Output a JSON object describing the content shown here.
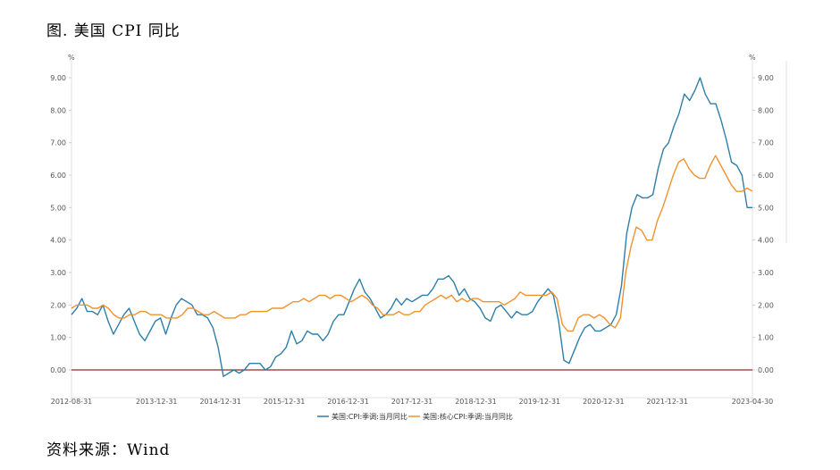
{
  "title": "图. 美国 CPI 同比",
  "source": "资料来源：Wind",
  "chart_data": {
    "type": "line",
    "unit_left": "%",
    "unit_right": "%",
    "ylim": [
      -0.5,
      9.0
    ],
    "yticks": [
      "0.00",
      "1.00",
      "2.00",
      "3.00",
      "4.00",
      "5.00",
      "6.00",
      "7.00",
      "8.00",
      "9.00"
    ],
    "xticks": [
      "2012-08-31",
      "2013-12-31",
      "2014-12-31",
      "2015-12-31",
      "2016-12-31",
      "2017-12-31",
      "2018-12-31",
      "2019-12-31",
      "2020-12-31",
      "2021-12-31",
      "2023-04-30"
    ],
    "x_start": "2012-08",
    "x_end": "2023-04",
    "grid": false,
    "legend_position": "bottom",
    "series": [
      {
        "name": "美国:CPI:季调:当月同比",
        "color": "#2e7fa8",
        "values": [
          1.7,
          1.9,
          2.2,
          1.8,
          1.8,
          1.7,
          2.0,
          1.5,
          1.1,
          1.4,
          1.7,
          1.9,
          1.5,
          1.1,
          0.9,
          1.2,
          1.5,
          1.6,
          1.1,
          1.6,
          2.0,
          2.2,
          2.1,
          2.0,
          1.7,
          1.7,
          1.6,
          1.3,
          0.7,
          -0.2,
          -0.1,
          0.0,
          -0.1,
          0.0,
          0.2,
          0.2,
          0.2,
          0.0,
          0.1,
          0.4,
          0.5,
          0.7,
          1.2,
          0.8,
          0.9,
          1.2,
          1.1,
          1.1,
          0.9,
          1.1,
          1.5,
          1.7,
          1.7,
          2.1,
          2.5,
          2.8,
          2.4,
          2.2,
          1.9,
          1.6,
          1.7,
          1.9,
          2.2,
          2.0,
          2.2,
          2.1,
          2.2,
          2.3,
          2.3,
          2.5,
          2.8,
          2.8,
          2.9,
          2.7,
          2.3,
          2.5,
          2.2,
          2.1,
          1.9,
          1.6,
          1.5,
          1.9,
          2.0,
          1.8,
          1.6,
          1.8,
          1.7,
          1.7,
          1.8,
          2.1,
          2.3,
          2.5,
          2.3,
          1.5,
          0.3,
          0.2,
          0.6,
          1.0,
          1.3,
          1.4,
          1.2,
          1.2,
          1.3,
          1.4,
          1.7,
          2.6,
          4.2,
          5.0,
          5.4,
          5.3,
          5.3,
          5.4,
          6.2,
          6.8,
          7.0,
          7.5,
          7.9,
          8.5,
          8.3,
          8.6,
          9.0,
          8.5,
          8.2,
          8.2,
          7.7,
          7.1,
          6.4,
          6.3,
          6.0,
          5.0,
          5.0
        ]
      },
      {
        "name": "美国:核心CPI:季调:当月同比",
        "color": "#f0922e",
        "values": [
          1.9,
          2.0,
          2.0,
          2.0,
          1.9,
          1.9,
          2.0,
          1.9,
          1.7,
          1.6,
          1.6,
          1.7,
          1.7,
          1.8,
          1.8,
          1.7,
          1.7,
          1.7,
          1.6,
          1.6,
          1.6,
          1.7,
          1.9,
          1.9,
          1.8,
          1.7,
          1.7,
          1.8,
          1.7,
          1.6,
          1.6,
          1.6,
          1.7,
          1.7,
          1.8,
          1.8,
          1.8,
          1.8,
          1.9,
          1.9,
          1.9,
          2.0,
          2.1,
          2.1,
          2.2,
          2.1,
          2.2,
          2.3,
          2.3,
          2.2,
          2.3,
          2.3,
          2.2,
          2.1,
          2.2,
          2.3,
          2.2,
          2.0,
          1.9,
          1.7,
          1.7,
          1.7,
          1.8,
          1.7,
          1.7,
          1.8,
          1.8,
          2.0,
          2.1,
          2.2,
          2.3,
          2.2,
          2.3,
          2.1,
          2.2,
          2.1,
          2.2,
          2.2,
          2.1,
          2.1,
          2.1,
          2.1,
          2.0,
          2.1,
          2.2,
          2.4,
          2.3,
          2.3,
          2.3,
          2.3,
          2.3,
          2.4,
          2.2,
          1.4,
          1.2,
          1.2,
          1.6,
          1.7,
          1.7,
          1.6,
          1.7,
          1.6,
          1.4,
          1.3,
          1.6,
          3.0,
          3.8,
          4.4,
          4.3,
          4.0,
          4.0,
          4.6,
          5.0,
          5.5,
          6.0,
          6.4,
          6.5,
          6.2,
          6.0,
          5.9,
          5.9,
          6.3,
          6.6,
          6.3,
          6.0,
          5.7,
          5.5,
          5.5,
          5.6,
          5.5
        ]
      }
    ]
  }
}
